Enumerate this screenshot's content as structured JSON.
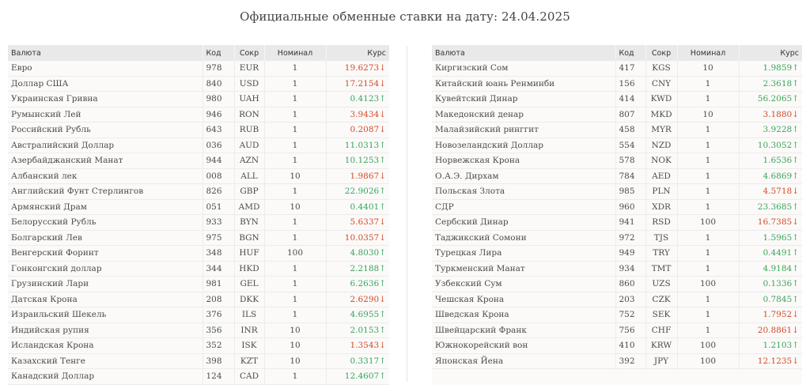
{
  "title": "Официальные обменные ставки на дату: 24.04.2025",
  "columns": {
    "currency": "Валюта",
    "code": "Код",
    "abbr": "Сокр",
    "nominal": "Номинал",
    "rate": "Курс"
  },
  "left_table": [
    {
      "name": "Евро",
      "code": "978",
      "abbr": "EUR",
      "nominal": "1",
      "rate": "19.6273",
      "trend": "down"
    },
    {
      "name": "Доллар США",
      "code": "840",
      "abbr": "USD",
      "nominal": "1",
      "rate": "17.2154",
      "trend": "down"
    },
    {
      "name": "Украинская Гривна",
      "code": "980",
      "abbr": "UAH",
      "nominal": "1",
      "rate": "0.4123",
      "trend": "up"
    },
    {
      "name": "Румынский Лей",
      "code": "946",
      "abbr": "RON",
      "nominal": "1",
      "rate": "3.9434",
      "trend": "down"
    },
    {
      "name": "Российский Рубль",
      "code": "643",
      "abbr": "RUB",
      "nominal": "1",
      "rate": "0.2087",
      "trend": "down"
    },
    {
      "name": "Австралийский Доллар",
      "code": "036",
      "abbr": "AUD",
      "nominal": "1",
      "rate": "11.0313",
      "trend": "up"
    },
    {
      "name": "Азербайджанский Манат",
      "code": "944",
      "abbr": "AZN",
      "nominal": "1",
      "rate": "10.1253",
      "trend": "up"
    },
    {
      "name": "Албанский лек",
      "code": "008",
      "abbr": "ALL",
      "nominal": "10",
      "rate": "1.9867",
      "trend": "down"
    },
    {
      "name": "Английский Фунт Стерлингов",
      "code": "826",
      "abbr": "GBP",
      "nominal": "1",
      "rate": "22.9026",
      "trend": "up"
    },
    {
      "name": "Армянский Драм",
      "code": "051",
      "abbr": "AMD",
      "nominal": "10",
      "rate": "0.4401",
      "trend": "up"
    },
    {
      "name": "Белорусский Рубль",
      "code": "933",
      "abbr": "BYN",
      "nominal": "1",
      "rate": "5.6337",
      "trend": "down"
    },
    {
      "name": "Болгарский Лев",
      "code": "975",
      "abbr": "BGN",
      "nominal": "1",
      "rate": "10.0357",
      "trend": "down"
    },
    {
      "name": "Венгерский Форинт",
      "code": "348",
      "abbr": "HUF",
      "nominal": "100",
      "rate": "4.8030",
      "trend": "up"
    },
    {
      "name": "Гонконгский доллар",
      "code": "344",
      "abbr": "HKD",
      "nominal": "1",
      "rate": "2.2188",
      "trend": "up"
    },
    {
      "name": "Грузинский Лари",
      "code": "981",
      "abbr": "GEL",
      "nominal": "1",
      "rate": "6.2636",
      "trend": "up"
    },
    {
      "name": "Датская Крона",
      "code": "208",
      "abbr": "DKK",
      "nominal": "1",
      "rate": "2.6290",
      "trend": "down"
    },
    {
      "name": "Израильский Шекель",
      "code": "376",
      "abbr": "ILS",
      "nominal": "1",
      "rate": "4.6955",
      "trend": "up"
    },
    {
      "name": "Индийская рупия",
      "code": "356",
      "abbr": "INR",
      "nominal": "10",
      "rate": "2.0153",
      "trend": "up"
    },
    {
      "name": "Исландская Крона",
      "code": "352",
      "abbr": "ISK",
      "nominal": "10",
      "rate": "1.3543",
      "trend": "down"
    },
    {
      "name": "Казахский Тенге",
      "code": "398",
      "abbr": "KZT",
      "nominal": "10",
      "rate": "0.3317",
      "trend": "up"
    },
    {
      "name": "Канадский Доллар",
      "code": "124",
      "abbr": "CAD",
      "nominal": "1",
      "rate": "12.4607",
      "trend": "up"
    }
  ],
  "right_table": [
    {
      "name": "Киргизский Сом",
      "code": "417",
      "abbr": "KGS",
      "nominal": "10",
      "rate": "1.9859",
      "trend": "up"
    },
    {
      "name": "Китайский юань Ренминби",
      "code": "156",
      "abbr": "CNY",
      "nominal": "1",
      "rate": "2.3618",
      "trend": "up"
    },
    {
      "name": "Кувейтский Динар",
      "code": "414",
      "abbr": "KWD",
      "nominal": "1",
      "rate": "56.2065",
      "trend": "up"
    },
    {
      "name": "Македонский денар",
      "code": "807",
      "abbr": "MKD",
      "nominal": "10",
      "rate": "3.1880",
      "trend": "down"
    },
    {
      "name": "Малайзийский ринггит",
      "code": "458",
      "abbr": "MYR",
      "nominal": "1",
      "rate": "3.9228",
      "trend": "up"
    },
    {
      "name": "Новозеландский Доллар",
      "code": "554",
      "abbr": "NZD",
      "nominal": "1",
      "rate": "10.3052",
      "trend": "up"
    },
    {
      "name": "Норвежская Крона",
      "code": "578",
      "abbr": "NOK",
      "nominal": "1",
      "rate": "1.6536",
      "trend": "up"
    },
    {
      "name": "О.А.Э. Дирхам",
      "code": "784",
      "abbr": "AED",
      "nominal": "1",
      "rate": "4.6869",
      "trend": "up"
    },
    {
      "name": "Польская Злота",
      "code": "985",
      "abbr": "PLN",
      "nominal": "1",
      "rate": "4.5718",
      "trend": "down"
    },
    {
      "name": "СДР",
      "code": "960",
      "abbr": "XDR",
      "nominal": "1",
      "rate": "23.3685",
      "trend": "up"
    },
    {
      "name": "Сербский Динар",
      "code": "941",
      "abbr": "RSD",
      "nominal": "100",
      "rate": "16.7385",
      "trend": "down"
    },
    {
      "name": "Таджикский Сомони",
      "code": "972",
      "abbr": "TJS",
      "nominal": "1",
      "rate": "1.5965",
      "trend": "up"
    },
    {
      "name": "Турецкая Лира",
      "code": "949",
      "abbr": "TRY",
      "nominal": "1",
      "rate": "0.4491",
      "trend": "up"
    },
    {
      "name": "Туркменский Манат",
      "code": "934",
      "abbr": "TMT",
      "nominal": "1",
      "rate": "4.9184",
      "trend": "up"
    },
    {
      "name": "Узбекский Сум",
      "code": "860",
      "abbr": "UZS",
      "nominal": "100",
      "rate": "0.1336",
      "trend": "up"
    },
    {
      "name": "Чешская Крона",
      "code": "203",
      "abbr": "CZK",
      "nominal": "1",
      "rate": "0.7845",
      "trend": "up"
    },
    {
      "name": "Шведская Крона",
      "code": "752",
      "abbr": "SEK",
      "nominal": "1",
      "rate": "1.7952",
      "trend": "down"
    },
    {
      "name": "Швейцарский Франк",
      "code": "756",
      "abbr": "CHF",
      "nominal": "1",
      "rate": "20.8861",
      "trend": "down"
    },
    {
      "name": "Южнокорейский вон",
      "code": "410",
      "abbr": "KRW",
      "nominal": "100",
      "rate": "1.2103",
      "trend": "up"
    },
    {
      "name": "Японская Йена",
      "code": "392",
      "abbr": "JPY",
      "nominal": "100",
      "rate": "12.1235",
      "trend": "down"
    }
  ],
  "trend_symbols": {
    "up": "↑",
    "down": "↓"
  },
  "colors": {
    "up": "#3aa45c",
    "down": "#d34a2a",
    "header_bg": "#e9e9e9"
  }
}
